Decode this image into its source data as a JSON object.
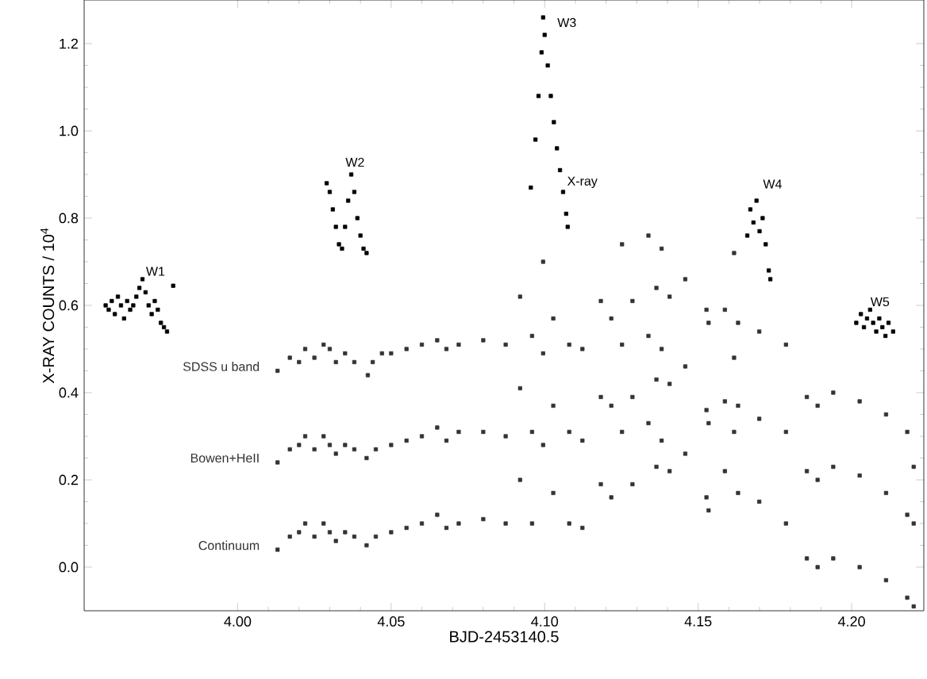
{
  "chart_data": {
    "type": "scatter",
    "xlabel": "BJD-2453140.5",
    "ylabel": "X-RAY COUNTS / 10$^{4}$",
    "marker": "square",
    "grid": false,
    "xlim": [
      3.95,
      4.2235
    ],
    "ylim": [
      -0.1,
      1.3
    ],
    "xticks": [
      {
        "value": 4.0,
        "label": "4.00"
      },
      {
        "value": 4.05,
        "label": "4.05"
      },
      {
        "value": 4.1,
        "label": "4.10"
      },
      {
        "value": 4.15,
        "label": "4.15"
      },
      {
        "value": 4.2,
        "label": "4.20"
      }
    ],
    "yticks": [
      {
        "value": 0,
        "label": "0.0"
      },
      {
        "value": 0.2,
        "label": "0.2"
      },
      {
        "value": 0.4,
        "label": "0.4"
      },
      {
        "value": 0.6,
        "label": "0.6"
      },
      {
        "value": 0.8,
        "label": "0.8"
      },
      {
        "value": 1.0,
        "label": "1.0"
      },
      {
        "value": 1.2,
        "label": "1.2"
      }
    ],
    "annotations": [
      {
        "text": "W1",
        "x": 3.969,
        "y": 0.66
      },
      {
        "text": "W2",
        "x": 4.034,
        "y": 0.91
      },
      {
        "text": "W3",
        "x": 4.103,
        "y": 1.23
      },
      {
        "text": "W4",
        "x": 4.17,
        "y": 0.86
      },
      {
        "text": "W5",
        "x": 4.205,
        "y": 0.59
      }
    ],
    "series": [
      {
        "name": "X-ray",
        "color": "#000000",
        "x": [
          3.957,
          3.958,
          3.959,
          3.96,
          3.961,
          3.962,
          3.963,
          3.964,
          3.965,
          3.966,
          3.967,
          3.968,
          3.969,
          3.97,
          3.971,
          3.972,
          3.973,
          3.974,
          3.975,
          3.976,
          3.977,
          3.979,
          4.029,
          4.03,
          4.031,
          4.032,
          4.033,
          4.034,
          4.035,
          4.036,
          4.037,
          4.038,
          4.039,
          4.04,
          4.041,
          4.042,
          4.0955,
          4.097,
          4.098,
          4.099,
          4.0995,
          4.1,
          4.101,
          4.102,
          4.103,
          4.104,
          4.105,
          4.106,
          4.107,
          4.1075,
          4.166,
          4.167,
          4.168,
          4.169,
          4.17,
          4.171,
          4.172,
          4.173,
          4.1735,
          4.2015,
          4.203,
          4.204,
          4.205,
          4.206,
          4.207,
          4.208,
          4.209,
          4.21,
          4.211,
          4.212,
          4.2135
        ],
        "values": [
          0.6,
          0.59,
          0.61,
          0.58,
          0.62,
          0.6,
          0.57,
          0.61,
          0.59,
          0.6,
          0.62,
          0.64,
          0.66,
          0.63,
          0.6,
          0.58,
          0.61,
          0.59,
          0.56,
          0.55,
          0.54,
          0.645,
          0.88,
          0.86,
          0.82,
          0.78,
          0.74,
          0.73,
          0.78,
          0.84,
          0.9,
          0.86,
          0.8,
          0.76,
          0.73,
          0.72,
          0.87,
          0.98,
          1.08,
          1.18,
          1.26,
          1.22,
          1.15,
          1.08,
          1.02,
          0.96,
          0.91,
          0.86,
          0.81,
          0.78,
          0.76,
          0.82,
          0.79,
          0.84,
          0.77,
          0.8,
          0.74,
          0.68,
          0.66,
          0.56,
          0.58,
          0.55,
          0.57,
          0.59,
          0.56,
          0.54,
          0.57,
          0.55,
          0.53,
          0.56,
          0.54
        ]
      },
      {
        "name": "SDSS u band",
        "color": "#333333",
        "x": [
          4.013,
          4.017,
          4.02,
          4.022,
          4.025,
          4.028,
          4.03,
          4.032,
          4.035,
          4.038,
          4.0424,
          4.044,
          4.047,
          4.05,
          4.055,
          4.06,
          4.065,
          4.068,
          4.072,
          4.08,
          4.0873,
          4.092,
          4.0959,
          4.0995,
          4.1028,
          4.108,
          4.1123,
          4.1183,
          4.1217,
          4.1252,
          4.1286,
          4.1338,
          4.1364,
          4.1381,
          4.1407,
          4.1458,
          4.1527,
          4.1534,
          4.1587,
          4.1617,
          4.163,
          4.1699,
          4.1786,
          4.1854,
          4.1889,
          4.194,
          4.2026,
          4.2112,
          4.2181,
          4.2202
        ],
        "values": [
          0.45,
          0.48,
          0.47,
          0.5,
          0.48,
          0.51,
          0.5,
          0.47,
          0.49,
          0.47,
          0.44,
          0.47,
          0.49,
          0.49,
          0.5,
          0.51,
          0.52,
          0.5,
          0.51,
          0.52,
          0.51,
          0.62,
          0.53,
          0.7,
          0.57,
          0.51,
          0.5,
          0.61,
          0.57,
          0.74,
          0.61,
          0.76,
          0.64,
          0.73,
          0.62,
          0.66,
          0.59,
          0.56,
          0.59,
          0.72,
          0.56,
          0.54,
          0.51,
          0.39,
          0.37,
          0.4,
          0.38,
          0.35,
          0.31,
          0.23
        ]
      },
      {
        "name": "Bowen+HeII",
        "color": "#333333",
        "x": [
          4.013,
          4.017,
          4.02,
          4.022,
          4.025,
          4.028,
          4.03,
          4.032,
          4.035,
          4.038,
          4.042,
          4.045,
          4.05,
          4.055,
          4.06,
          4.065,
          4.068,
          4.072,
          4.08,
          4.0873,
          4.092,
          4.0959,
          4.0995,
          4.1028,
          4.108,
          4.1123,
          4.1183,
          4.1217,
          4.1252,
          4.1286,
          4.1338,
          4.1364,
          4.1381,
          4.1407,
          4.1458,
          4.1527,
          4.1534,
          4.1587,
          4.1617,
          4.163,
          4.1699,
          4.1786,
          4.1854,
          4.1889,
          4.194,
          4.2026,
          4.2112,
          4.2181,
          4.2202
        ],
        "values": [
          0.24,
          0.27,
          0.28,
          0.3,
          0.27,
          0.3,
          0.28,
          0.26,
          0.28,
          0.27,
          0.25,
          0.27,
          0.28,
          0.29,
          0.3,
          0.32,
          0.29,
          0.31,
          0.31,
          0.3,
          0.41,
          0.31,
          0.49,
          0.37,
          0.31,
          0.29,
          0.39,
          0.37,
          0.51,
          0.39,
          0.53,
          0.43,
          0.5,
          0.42,
          0.46,
          0.36,
          0.33,
          0.38,
          0.48,
          0.37,
          0.34,
          0.31,
          0.22,
          0.2,
          0.23,
          0.21,
          0.17,
          0.12,
          0.1
        ]
      },
      {
        "name": "Continuum",
        "color": "#333333",
        "x": [
          4.013,
          4.017,
          4.02,
          4.022,
          4.025,
          4.028,
          4.03,
          4.032,
          4.035,
          4.038,
          4.042,
          4.045,
          4.05,
          4.055,
          4.06,
          4.065,
          4.068,
          4.072,
          4.08,
          4.0873,
          4.092,
          4.0959,
          4.0995,
          4.1028,
          4.108,
          4.1123,
          4.1183,
          4.1217,
          4.1252,
          4.1286,
          4.1338,
          4.1364,
          4.1381,
          4.1407,
          4.1458,
          4.1527,
          4.1534,
          4.1587,
          4.1617,
          4.163,
          4.1699,
          4.1786,
          4.1854,
          4.1889,
          4.194,
          4.2026,
          4.2112,
          4.2181,
          4.2202
        ],
        "values": [
          0.04,
          0.07,
          0.08,
          0.1,
          0.07,
          0.1,
          0.08,
          0.06,
          0.08,
          0.07,
          0.05,
          0.07,
          0.08,
          0.09,
          0.1,
          0.12,
          0.09,
          0.1,
          0.11,
          0.1,
          0.2,
          0.1,
          0.28,
          0.17,
          0.1,
          0.09,
          0.19,
          0.16,
          0.31,
          0.19,
          0.33,
          0.23,
          0.29,
          0.22,
          0.26,
          0.16,
          0.13,
          0.22,
          0.31,
          0.17,
          0.15,
          0.1,
          0.02,
          0.0,
          0.02,
          0.0,
          -0.03,
          -0.07,
          -0.09
        ]
      }
    ]
  }
}
